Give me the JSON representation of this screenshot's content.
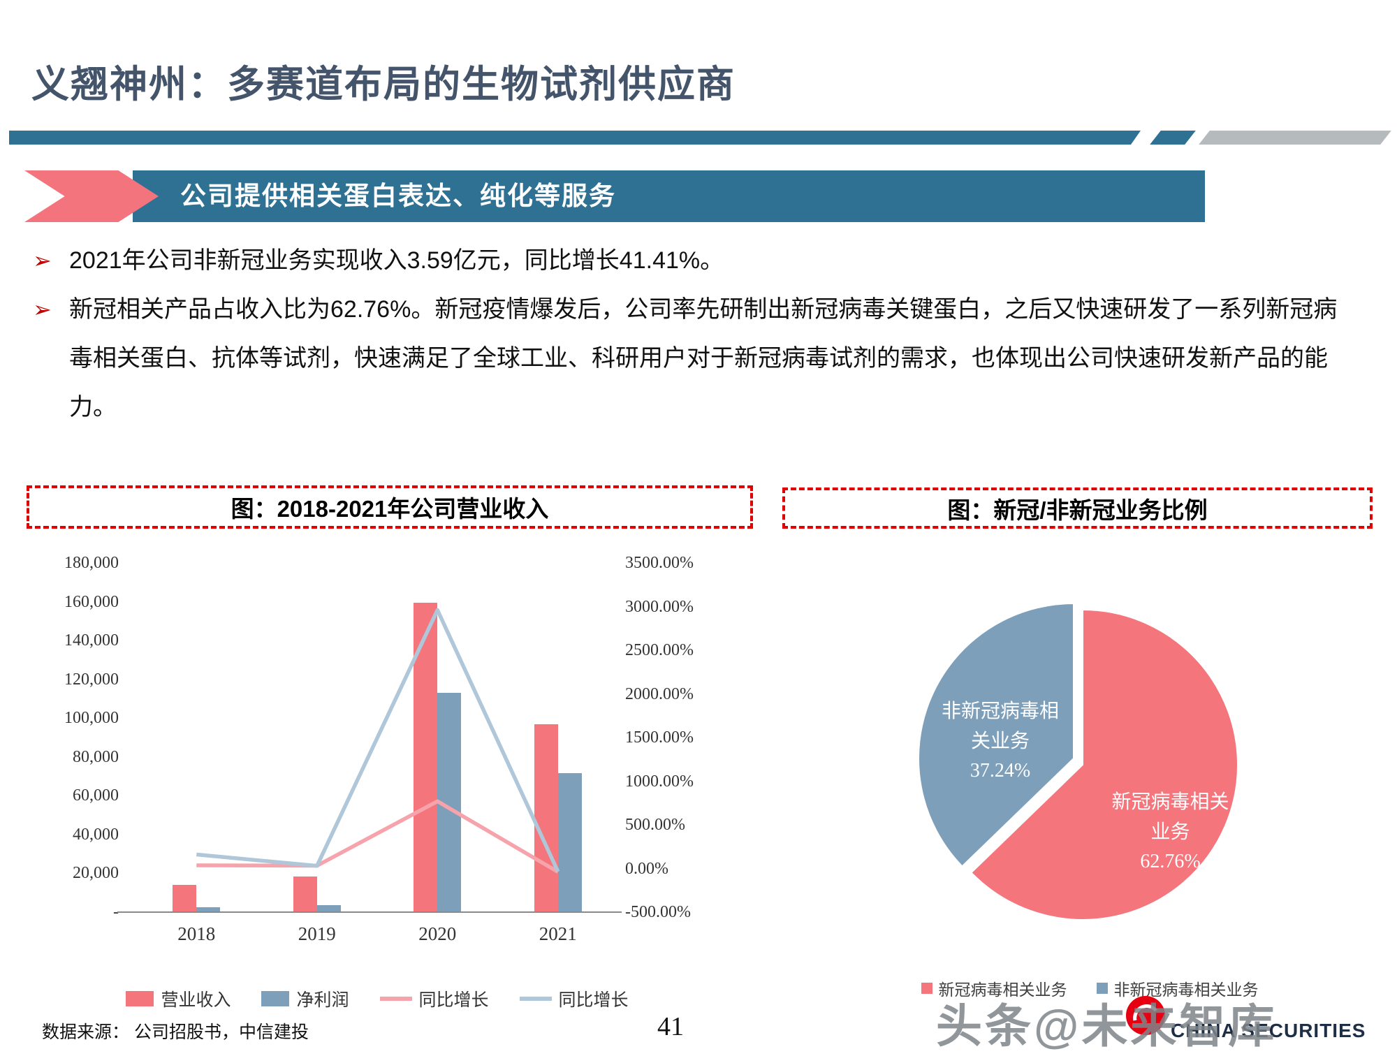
{
  "page": {
    "title": "义翘神州：多赛道布局的生物试剂供应商",
    "banner": {
      "label": "公司提供相关蛋白表达、纯化等服务"
    },
    "bullets": [
      "2021年公司非新冠业务实现收入3.59亿元，同比增长41.41%。",
      "新冠相关产品占收入比为62.76%。新冠疫情爆发后，公司率先研制出新冠病毒关键蛋白，之后又快速研发了一系列新冠病毒相关蛋白、抗体等试剂，快速满足了全球工业、科研用户对于新冠病毒试剂的需求，也体现出公司快速研发新产品的能力。"
    ],
    "footer": {
      "source": "数据来源： 公司招股书，中信建投",
      "page_number": "41"
    },
    "watermark": {
      "text": "头条@未来智库",
      "logo_label": "CHINA SECURITIES"
    }
  },
  "colors": {
    "title": "#44546A",
    "banner_blue": "#2E7193",
    "banner_pink": "#F4747E",
    "dashed_border": "#E00000",
    "bar_revenue": "#F4757C",
    "bar_profit": "#7D9FBA",
    "line_revenue_growth": "#F6A3AB",
    "line_profit_growth": "#AFC7D8"
  },
  "chart_data": [
    {
      "type": "bar",
      "title": "图：2018-2021年公司营业收入",
      "categories": [
        "2018",
        "2019",
        "2020",
        "2021"
      ],
      "bar_series": [
        {
          "name": "营业收入",
          "color": "#F4757C",
          "axis": "left",
          "values": [
            13900,
            18400,
            159600,
            96800
          ]
        },
        {
          "name": "净利润",
          "color": "#7D9FBA",
          "axis": "left",
          "values": [
            2700,
            3600,
            113200,
            71600
          ]
        }
      ],
      "line_series": [
        {
          "name": "同比增长",
          "color": "#F6A3AB",
          "axis": "right",
          "values": [
            36,
            32,
            770,
            -39
          ]
        },
        {
          "name": "同比增长",
          "color": "#AFC7D8",
          "axis": "right",
          "values": [
            160,
            30,
            2960,
            -36
          ]
        }
      ],
      "left_axis": {
        "min": 0,
        "max": 180000,
        "ticks": [
          "180,000",
          "160,000",
          "140,000",
          "120,000",
          "100,000",
          "80,000",
          "60,000",
          "40,000",
          "20,000",
          "-"
        ]
      },
      "right_axis": {
        "min": -500,
        "max": 3500,
        "ticks": [
          "3500.00%",
          "3000.00%",
          "2500.00%",
          "2000.00%",
          "1500.00%",
          "1000.00%",
          "500.00%",
          "0.00%",
          "-500.00%"
        ]
      },
      "legend": [
        "营业收入",
        "净利润",
        "同比增长",
        "同比增长"
      ],
      "legend_position": "bottom",
      "grid": false
    },
    {
      "type": "pie",
      "title": "图：新冠/非新冠业务比例",
      "start_angle_deg": -90,
      "direction": "clockwise",
      "slices": [
        {
          "label": "新冠病毒相关业务",
          "value": 62.76,
          "color": "#F4757C",
          "text_lines": [
            "新冠病毒相关",
            "业务",
            "62.76%"
          ]
        },
        {
          "label": "非新冠病毒相关业务",
          "value": 37.24,
          "color": "#7D9FBA",
          "text_lines": [
            "非新冠病毒相",
            "关业务",
            "37.24%"
          ]
        }
      ],
      "legend": [
        "新冠病毒相关业务",
        "非新冠病毒相关业务"
      ],
      "legend_position": "bottom"
    }
  ]
}
